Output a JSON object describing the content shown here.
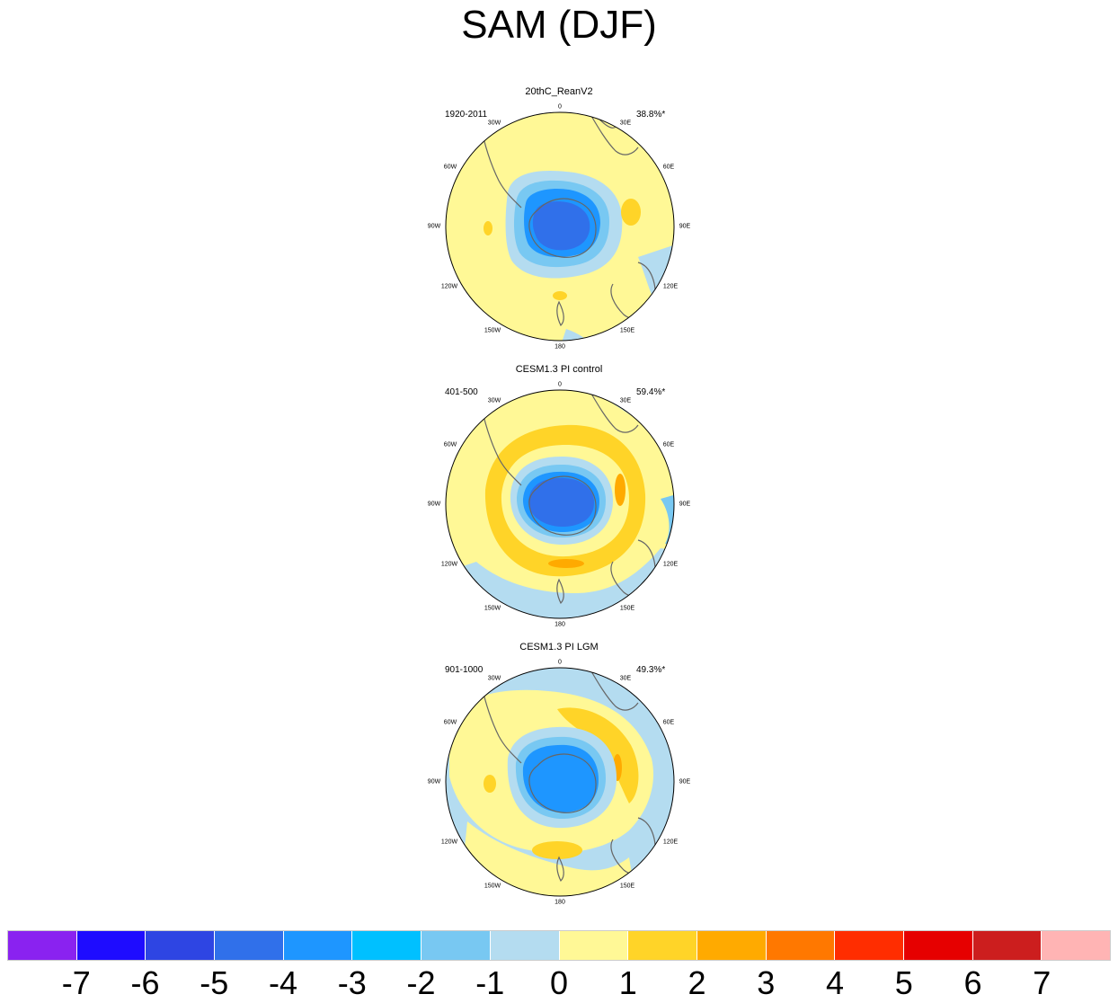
{
  "title": "SAM (DJF)",
  "panels": [
    {
      "title": "20thC_ReanV2",
      "period": "1920-2011",
      "percent": "38.8%*"
    },
    {
      "title": "CESM1.3 PI control",
      "period": "401-500",
      "percent": "59.4%*"
    },
    {
      "title": "CESM1.3 PI LGM",
      "period": "901-1000",
      "percent": "49.3%*"
    }
  ],
  "lon_labels": [
    "0",
    "30E",
    "60E",
    "90E",
    "120E",
    "150E",
    "180",
    "150W",
    "120W",
    "90W",
    "60W",
    "30W"
  ],
  "colorbar": {
    "colors": [
      "#8a22f0",
      "#1e0cff",
      "#2e45e3",
      "#3070ea",
      "#1e96ff",
      "#00c0ff",
      "#78c8f2",
      "#b4dcf0",
      "#fff896",
      "#ffd428",
      "#ffaa00",
      "#ff7800",
      "#ff2d00",
      "#e60000",
      "#cc1e1e",
      "#ffb4b4"
    ],
    "ticks": [
      "-7",
      "-6",
      "-5",
      "-4",
      "-3",
      "-2",
      "-1",
      "0",
      "1",
      "2",
      "3",
      "4",
      "5",
      "6",
      "7"
    ]
  },
  "colors": {
    "land_outline": "#666666",
    "circle_outline": "#000000"
  }
}
